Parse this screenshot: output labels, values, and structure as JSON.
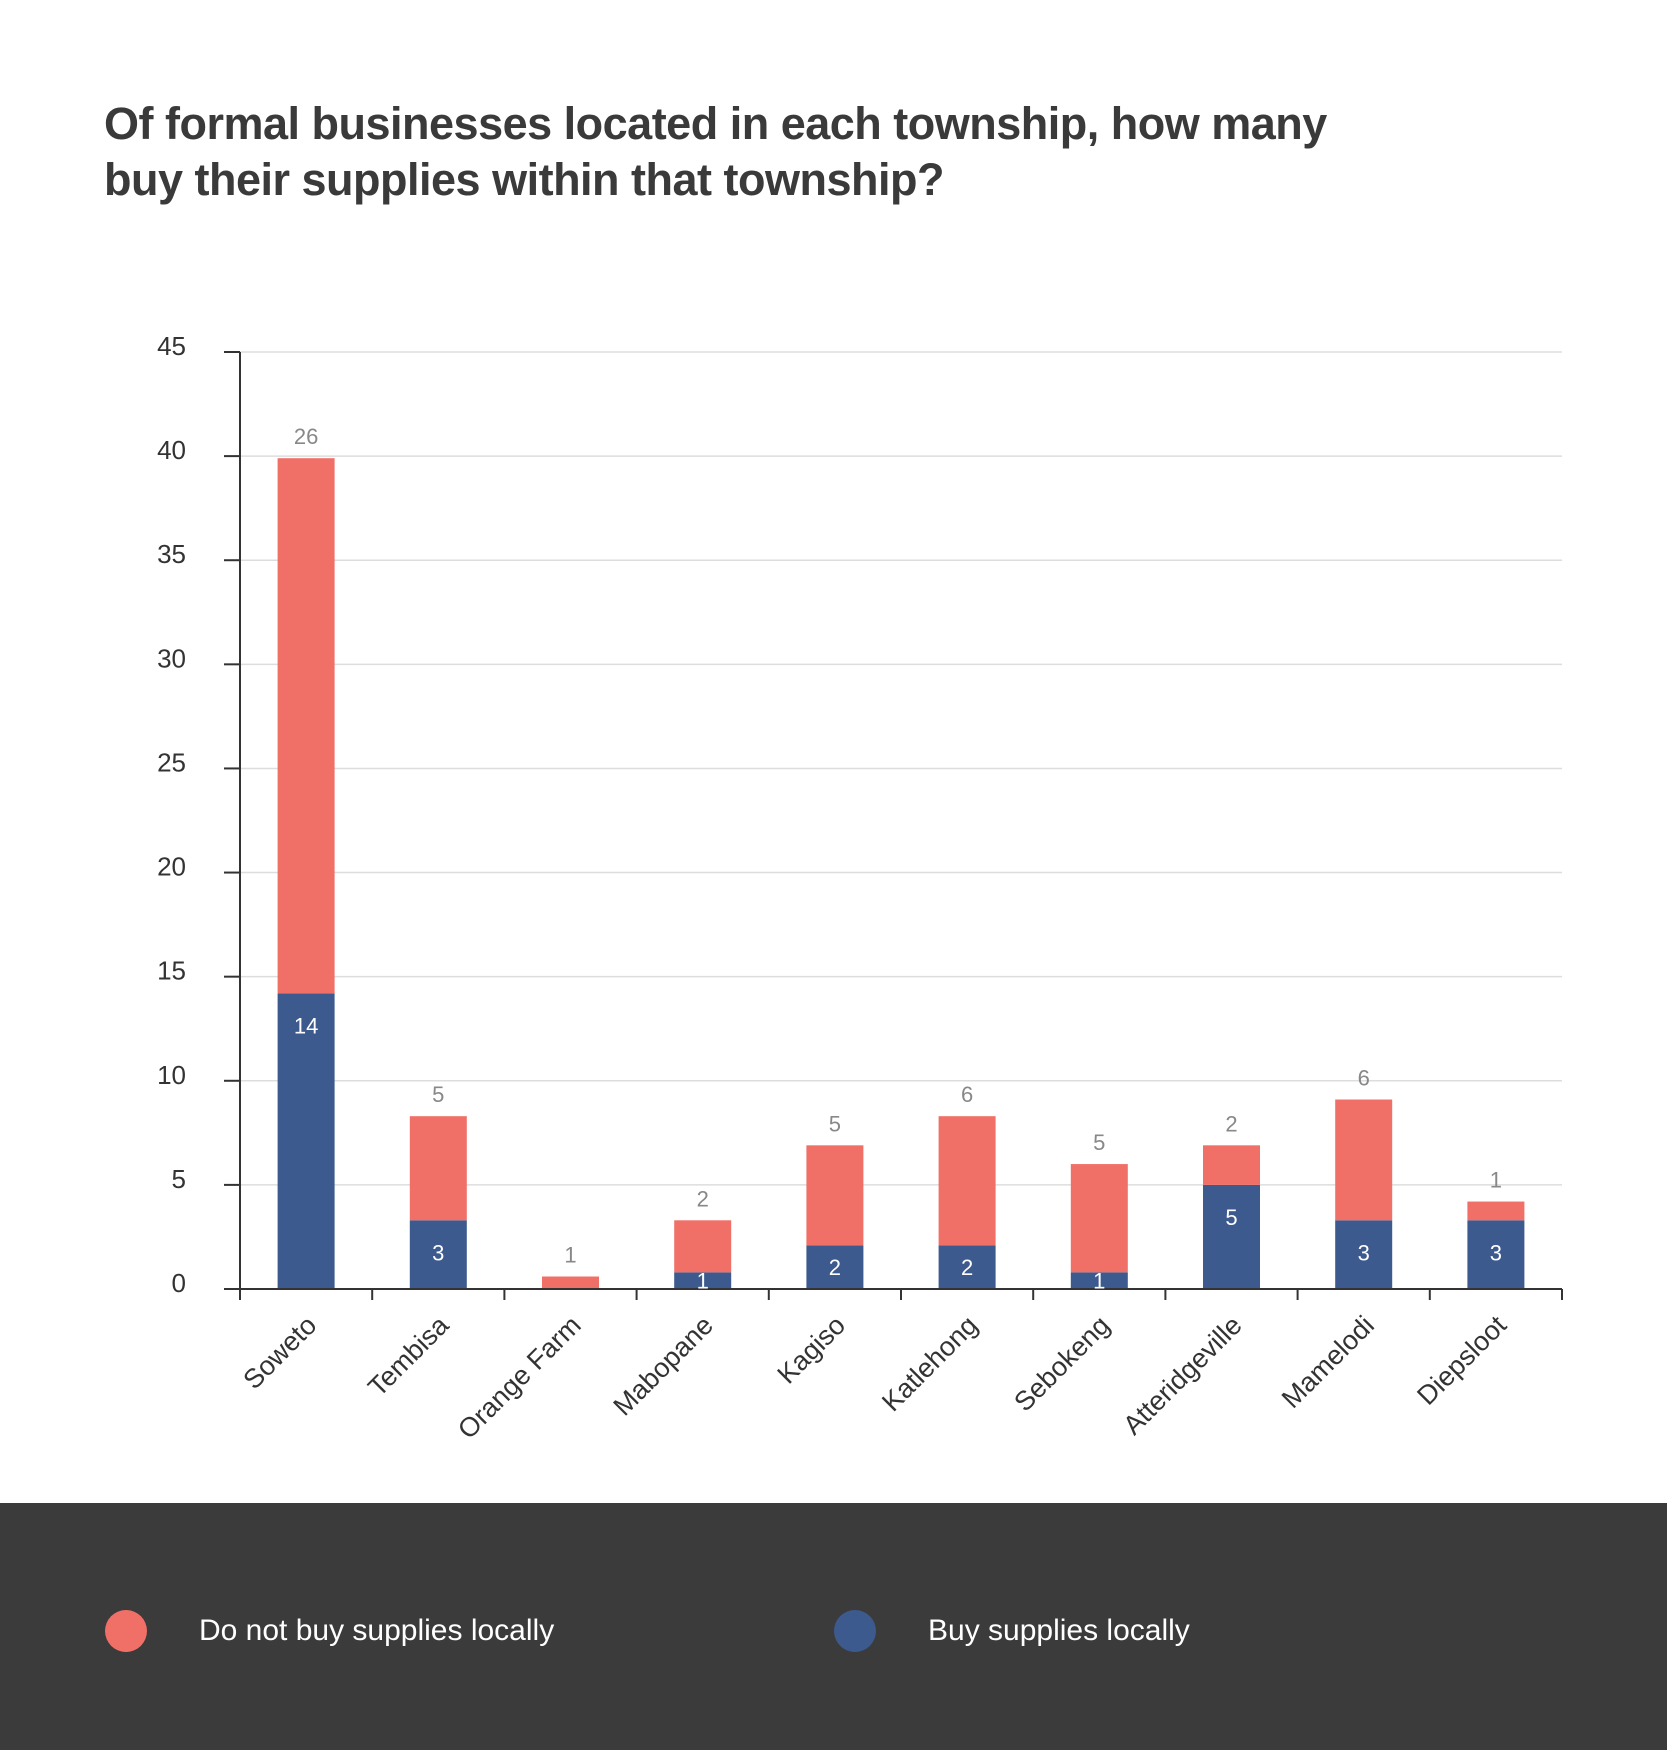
{
  "title": "Of formal businesses located in each township, how many buy their supplies within that township?",
  "colors": {
    "do_not_buy": "#f07068",
    "buy": "#3d5a8e",
    "legend_background": "#3b3b3b",
    "axis": "#333333",
    "grid": "#dddddd",
    "tick_label": "#333333",
    "top_label": "#888888",
    "inner_label": "#ffffff"
  },
  "chart_data": {
    "type": "bar",
    "stacked": true,
    "categories": [
      "Soweto",
      "Tembisa",
      "Orange Farm",
      "Mabopane",
      "Kagiso",
      "Katlehong",
      "Sebokeng",
      "Atteridgeville",
      "Mamelodi",
      "Diepsloot"
    ],
    "series": [
      {
        "name": "Buy supplies locally",
        "values": [
          14.2,
          3.3,
          0,
          0.8,
          2.1,
          2.1,
          0.8,
          5.0,
          3.3,
          3.3
        ],
        "labels": [
          "14",
          "3",
          "",
          "1",
          "2",
          "2",
          "1",
          "5",
          "3",
          "3"
        ]
      },
      {
        "name": "Do not buy supplies locally",
        "values": [
          25.7,
          5.0,
          0.6,
          2.5,
          4.8,
          6.2,
          5.2,
          1.9,
          5.8,
          0.9
        ],
        "labels": [
          "26",
          "5",
          "1",
          "2",
          "5",
          "6",
          "5",
          "2",
          "6",
          "1"
        ]
      }
    ],
    "ylim": [
      0,
      45
    ],
    "yticks": [
      0,
      5,
      10,
      15,
      20,
      25,
      30,
      35,
      40,
      45
    ],
    "grid": true,
    "legend_position": "bottom"
  },
  "legend": [
    {
      "label": "Do not buy supplies locally",
      "color": "#f07068"
    },
    {
      "label": "Buy supplies locally",
      "color": "#3d5a8e"
    }
  ]
}
